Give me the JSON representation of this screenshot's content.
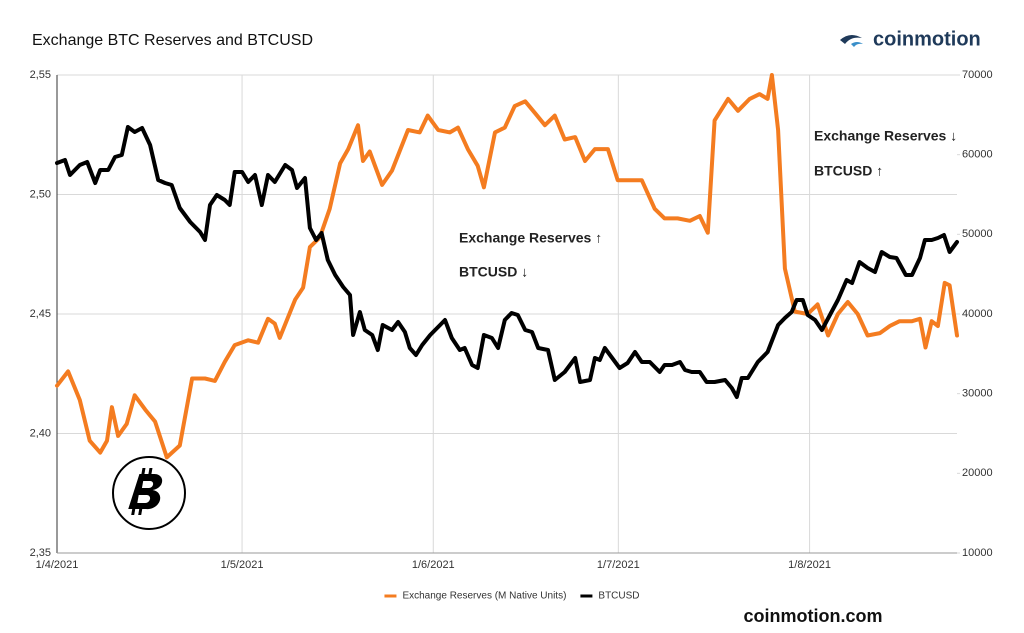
{
  "chart_data": {
    "type": "line",
    "title": "Exchange BTC Reserves and BTCUSD",
    "brand": "coinmotion",
    "footer": "coinmotion.com",
    "annotations": [
      "Exchange Reserves ↓",
      "BTCUSD ↑",
      "Exchange Reserves ↑",
      "BTCUSD ↓"
    ],
    "xlim": [
      0,
      145.9
    ],
    "xticks": [
      {
        "value": 0,
        "label": "1/4/2021"
      },
      {
        "value": 30,
        "label": "1/5/2021"
      },
      {
        "value": 61,
        "label": "1/6/2021"
      },
      {
        "value": 91,
        "label": "1/7/2021"
      },
      {
        "value": 122,
        "label": "1/8/2021"
      }
    ],
    "ylim": [
      2.35,
      2.55
    ],
    "yticks": [
      {
        "value": 2.35,
        "label": "2,35"
      },
      {
        "value": 2.4,
        "label": "2,40"
      },
      {
        "value": 2.45,
        "label": "2,45"
      },
      {
        "value": 2.5,
        "label": "2,50"
      },
      {
        "value": 2.55,
        "label": "2,55"
      }
    ],
    "y2lim": [
      10000,
      70000
    ],
    "y2ticks": [
      10000,
      20000,
      30000,
      40000,
      50000,
      60000,
      70000
    ],
    "grid": true,
    "legend": "bottom",
    "series": [
      {
        "name": "Exchange Reserves (M Native Units)",
        "color": "#f47c20",
        "x": [
          0,
          1.8,
          3.7,
          5.3,
          7.0,
          8.1,
          8.9,
          9.9,
          11.3,
          12.6,
          14.3,
          15.9,
          17.8,
          19.9,
          21.9,
          24.0,
          25.6,
          27.2,
          28.8,
          31.0,
          32.6,
          34.2,
          35.3,
          36.1,
          38.6,
          39.9,
          41.0,
          42.6,
          44.2,
          45.9,
          47.2,
          48.8,
          49.6,
          50.7,
          52.7,
          54.3,
          56.9,
          58.8,
          60.1,
          61.8,
          63.7,
          65.0,
          66.6,
          68.2,
          69.2,
          71.0,
          72.6,
          74.2,
          75.9,
          77.5,
          79.1,
          80.7,
          82.3,
          84.0,
          85.6,
          87.2,
          89.3,
          90.9,
          92.9,
          94.8,
          96.9,
          98.5,
          100.6,
          102.6,
          104.2,
          105.5,
          106.6,
          108.8,
          110.4,
          112.3,
          113.9,
          115.2,
          115.9,
          116.9,
          118.0,
          119.6,
          121.7,
          123.3,
          125.0,
          126.6,
          128.2,
          129.8,
          131.4,
          133.4,
          135.0,
          136.6,
          138.6,
          139.9,
          140.8,
          141.8,
          142.8,
          143.9,
          144.7,
          145.9
        ],
        "values": [
          2.42,
          2.426,
          2.414,
          2.397,
          2.392,
          2.397,
          2.411,
          2.399,
          2.404,
          2.416,
          2.41,
          2.405,
          2.39,
          2.395,
          2.423,
          2.423,
          2.422,
          2.43,
          2.437,
          2.439,
          2.438,
          2.448,
          2.446,
          2.44,
          2.456,
          2.461,
          2.478,
          2.482,
          2.494,
          2.513,
          2.519,
          2.529,
          2.514,
          2.518,
          2.504,
          2.51,
          2.527,
          2.526,
          2.533,
          2.527,
          2.526,
          2.528,
          2.519,
          2.512,
          2.503,
          2.526,
          2.528,
          2.537,
          2.539,
          2.534,
          2.529,
          2.533,
          2.523,
          2.524,
          2.514,
          2.519,
          2.519,
          2.506,
          2.506,
          2.506,
          2.494,
          2.49,
          2.49,
          2.489,
          2.491,
          2.484,
          2.531,
          2.54,
          2.535,
          2.54,
          2.542,
          2.54,
          2.55,
          2.527,
          2.469,
          2.451,
          2.45,
          2.454,
          2.441,
          2.45,
          2.455,
          2.45,
          2.441,
          2.442,
          2.445,
          2.447,
          2.447,
          2.448,
          2.436,
          2.447,
          2.445,
          2.463,
          2.462,
          2.441
        ]
      },
      {
        "name": "BTCUSD",
        "color": "#000000",
        "axis": "y2",
        "x": [
          0,
          1.3,
          2.1,
          3.7,
          4.9,
          6.2,
          7.0,
          8.3,
          9.4,
          10.5,
          11.5,
          12.6,
          13.8,
          15.1,
          16.4,
          17.5,
          18.6,
          19.9,
          21.6,
          23.2,
          24.0,
          24.8,
          25.9,
          27.2,
          28.0,
          28.8,
          30.0,
          31.0,
          32.1,
          33.2,
          34.2,
          35.3,
          37.0,
          38.1,
          38.9,
          40.2,
          41.0,
          42.0,
          42.9,
          43.9,
          45.1,
          46.4,
          47.5,
          48.0,
          49.1,
          49.9,
          51.1,
          52.0,
          52.8,
          54.3,
          55.3,
          56.4,
          57.2,
          58.2,
          59.2,
          60.5,
          62.1,
          62.9,
          64.0,
          65.3,
          66.1,
          67.3,
          68.2,
          69.2,
          70.5,
          71.5,
          72.6,
          73.7,
          74.7,
          75.9,
          77.0,
          78.0,
          79.6,
          80.7,
          82.3,
          84.0,
          84.8,
          86.4,
          87.2,
          88.0,
          88.8,
          90.0,
          91.2,
          92.5,
          93.7,
          94.8,
          96.1,
          97.7,
          98.5,
          99.7,
          101.0,
          101.8,
          102.9,
          104.2,
          105.3,
          106.6,
          108.3,
          109.4,
          110.2,
          111.0,
          112.0,
          113.6,
          115.2,
          116.9,
          118.0,
          119.1,
          119.9,
          120.9,
          121.7,
          122.9,
          124.0,
          125.3,
          126.6,
          128.0,
          128.9,
          130.1,
          131.4,
          132.6,
          133.7,
          135.0,
          136.1,
          137.6,
          138.6,
          139.9,
          140.7,
          141.8,
          142.8,
          143.8,
          144.7,
          145.9
        ],
        "values": [
          58950,
          59330,
          57450,
          58700,
          59080,
          56440,
          58070,
          58070,
          59710,
          59960,
          63470,
          62850,
          63350,
          61210,
          56820,
          56440,
          56190,
          53300,
          51550,
          50290,
          49290,
          53680,
          54940,
          54310,
          53680,
          57820,
          57820,
          56570,
          57450,
          53680,
          57450,
          56570,
          58700,
          58070,
          55820,
          57070,
          50790,
          49290,
          50170,
          46780,
          44900,
          43390,
          42390,
          37370,
          40250,
          37990,
          37370,
          35480,
          38620,
          37990,
          38990,
          37740,
          35730,
          34850,
          36110,
          37370,
          38620,
          39250,
          36990,
          35480,
          35730,
          33600,
          33220,
          37370,
          36990,
          35730,
          39250,
          40120,
          39870,
          37990,
          37740,
          35730,
          35480,
          31720,
          32720,
          34480,
          31460,
          31720,
          34480,
          34230,
          35730,
          34480,
          33220,
          33850,
          35230,
          33980,
          33980,
          32720,
          33600,
          33600,
          33980,
          32970,
          32720,
          32720,
          31460,
          31460,
          31720,
          30710,
          29580,
          31970,
          31970,
          33980,
          35230,
          38620,
          39500,
          40250,
          41760,
          41760,
          39870,
          39250,
          37990,
          39870,
          41760,
          44270,
          43890,
          46530,
          45780,
          45270,
          47780,
          47160,
          47030,
          44900,
          44900,
          47030,
          49290,
          49290,
          49540,
          49920,
          47780,
          49040
        ]
      }
    ]
  }
}
